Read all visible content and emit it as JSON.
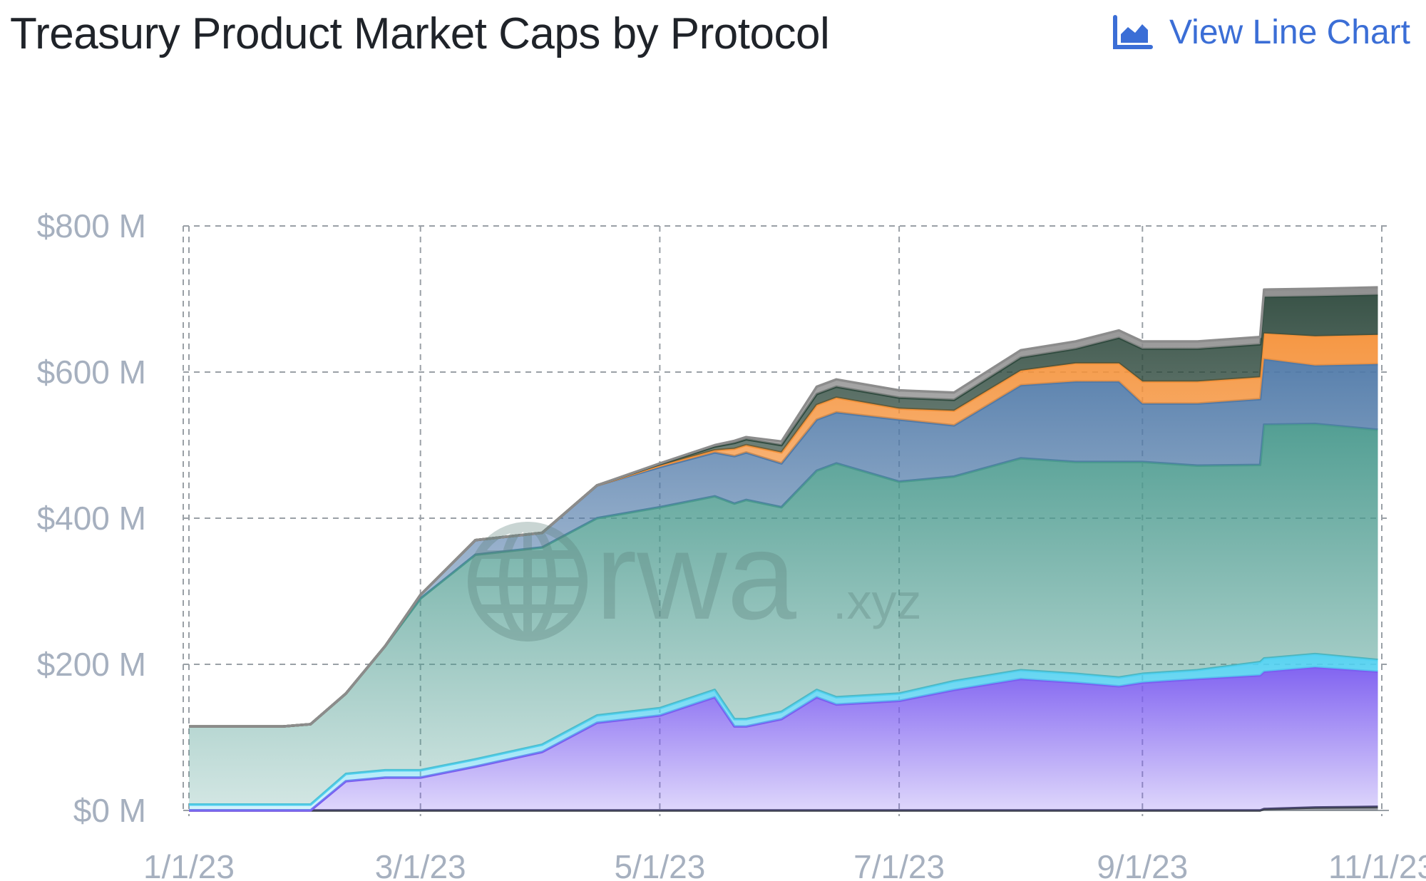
{
  "header": {
    "title": "Treasury Product Market Caps by Protocol",
    "view_button_label": "View Line Chart",
    "view_button_icon": "area-chart-icon"
  },
  "watermark": {
    "text": "rwa",
    "suffix": ".xyz",
    "icon": "globe-icon"
  },
  "colors": {
    "accent": "#3b6ed6",
    "grid": "#9aa0a6",
    "axis_text": "#a6b0bf"
  },
  "chart_data": {
    "type": "area",
    "stacked": true,
    "x_start": "2023-01-01",
    "x_end": "2023-11-01",
    "y_unit": "$M",
    "ylim": [
      0,
      800
    ],
    "yticks": [
      0,
      200,
      400,
      600,
      800
    ],
    "ytick_labels": [
      "$0 M",
      "$200 M",
      "$400 M",
      "$600 M",
      "$800 M"
    ],
    "xtick_labels": [
      "1/1/23",
      "3/1/23",
      "5/1/23",
      "7/1/23",
      "9/1/23",
      "11/1/23"
    ],
    "grid": true,
    "legend": "none",
    "x": [
      "2023-01-01",
      "2023-01-25",
      "2023-02-01",
      "2023-02-10",
      "2023-02-20",
      "2023-03-01",
      "2023-03-15",
      "2023-04-01",
      "2023-04-15",
      "2023-05-01",
      "2023-05-15",
      "2023-05-20",
      "2023-05-23",
      "2023-06-01",
      "2023-06-10",
      "2023-06-15",
      "2023-07-01",
      "2023-07-15",
      "2023-08-01",
      "2023-08-15",
      "2023-08-26",
      "2023-09-01",
      "2023-09-15",
      "2023-10-01",
      "2023-10-02",
      "2023-10-15",
      "2023-10-31"
    ],
    "series": [
      {
        "color": "#3a3f4a",
        "values": [
          0,
          0,
          0,
          0,
          0,
          0,
          0,
          0,
          0,
          0,
          0,
          0,
          0,
          0,
          0,
          0,
          0,
          0,
          0,
          0,
          0,
          0,
          0,
          0,
          2,
          4,
          5
        ]
      },
      {
        "color": "#7b5cf0",
        "values": [
          0,
          0,
          0,
          40,
          45,
          45,
          60,
          80,
          120,
          130,
          155,
          115,
          115,
          125,
          155,
          145,
          150,
          165,
          180,
          175,
          170,
          175,
          180,
          185,
          188,
          192,
          185
        ]
      },
      {
        "color": "#4fd0f0",
        "values": [
          8,
          8,
          8,
          10,
          10,
          10,
          10,
          10,
          10,
          10,
          10,
          10,
          10,
          10,
          10,
          10,
          10,
          12,
          12,
          12,
          12,
          12,
          12,
          18,
          18,
          18,
          16
        ]
      },
      {
        "color": "#4a9a8e",
        "values": [
          107,
          107,
          110,
          110,
          170,
          235,
          280,
          270,
          270,
          275,
          265,
          295,
          300,
          280,
          300,
          320,
          290,
          280,
          290,
          290,
          295,
          290,
          280,
          270,
          320,
          315,
          315
        ]
      },
      {
        "color": "#4f79a8",
        "values": [
          0,
          0,
          0,
          0,
          0,
          5,
          20,
          20,
          45,
          55,
          60,
          65,
          65,
          60,
          70,
          70,
          85,
          70,
          100,
          110,
          110,
          80,
          85,
          90,
          90,
          80,
          90
        ]
      },
      {
        "color": "#f5923a",
        "values": [
          0,
          0,
          0,
          0,
          0,
          0,
          0,
          0,
          0,
          2,
          3,
          10,
          10,
          15,
          20,
          20,
          15,
          20,
          20,
          25,
          25,
          30,
          30,
          30,
          35,
          40,
          40
        ]
      },
      {
        "color": "#2f4a3e",
        "values": [
          0,
          0,
          0,
          0,
          0,
          0,
          0,
          0,
          0,
          2,
          5,
          8,
          8,
          10,
          15,
          15,
          15,
          15,
          18,
          20,
          35,
          45,
          45,
          45,
          50,
          55,
          55
        ]
      },
      {
        "color": "#8c8c8c",
        "values": [
          0,
          0,
          0,
          0,
          0,
          0,
          0,
          0,
          0,
          1,
          2,
          3,
          3,
          5,
          10,
          10,
          10,
          10,
          10,
          10,
          10,
          10,
          10,
          10,
          10,
          10,
          10
        ]
      }
    ]
  }
}
